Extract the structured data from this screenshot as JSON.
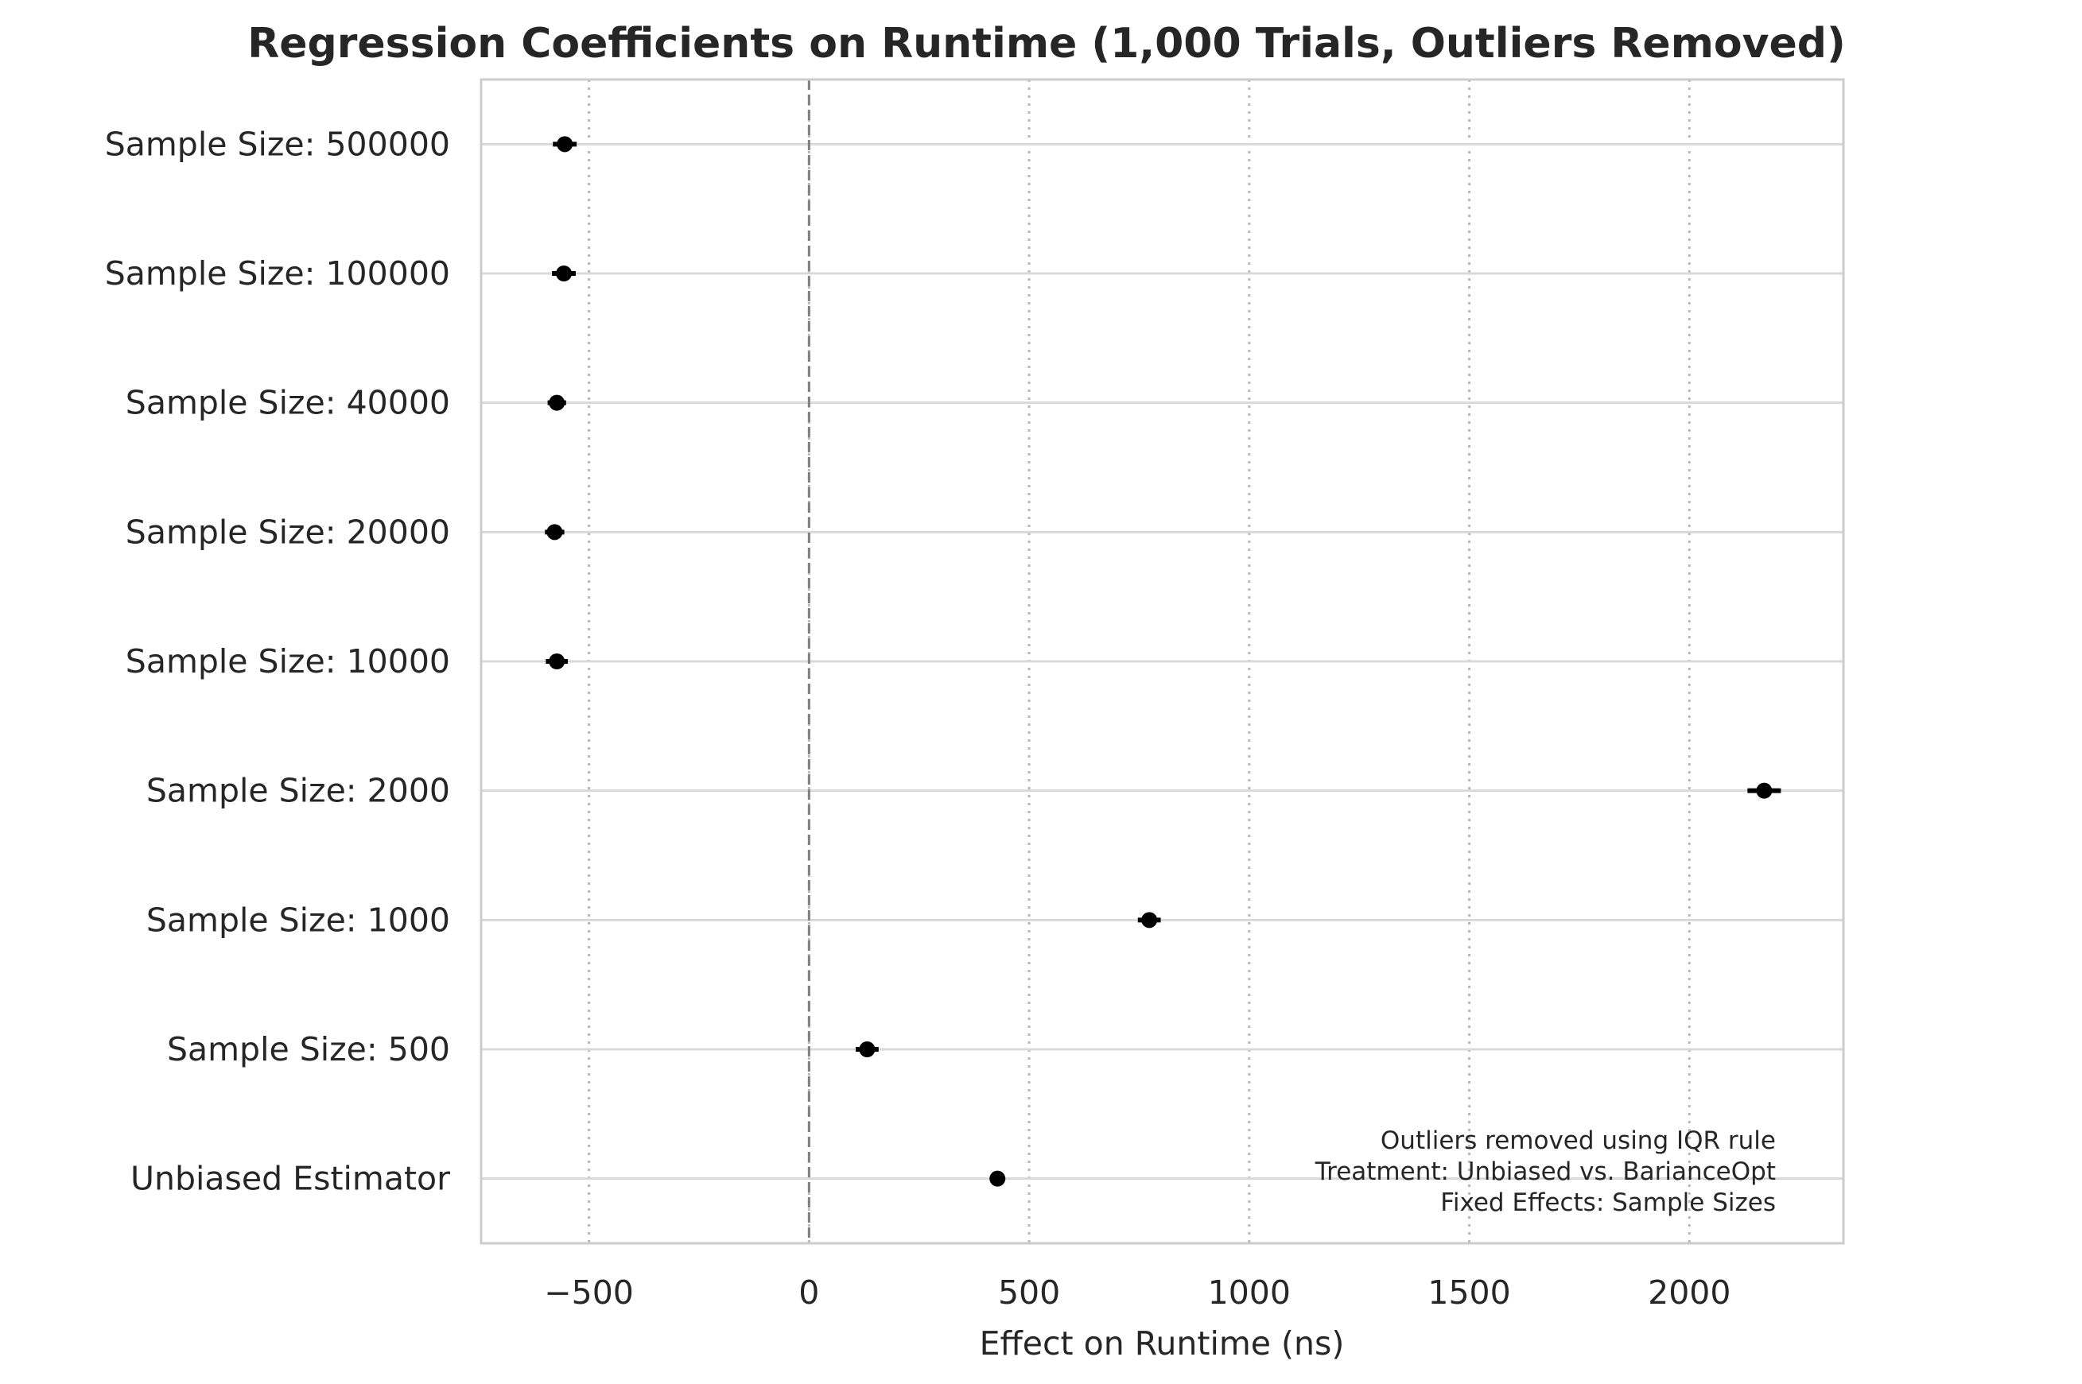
{
  "chart_data": {
    "type": "scatter",
    "title": "Regression Coefficients on Runtime (1,000 Trials, Outliers Removed)",
    "xlabel": "Effect on Runtime (ns)",
    "ylabel": "",
    "xlim": [
      -745,
      2350
    ],
    "xticks": [
      -500,
      0,
      500,
      1000,
      1500,
      2000
    ],
    "xtick_labels": [
      "−500",
      "0",
      "500",
      "1000",
      "1500",
      "2000"
    ],
    "reference_line": {
      "x": 0,
      "style": "dashed"
    },
    "grid": {
      "x": "dotted",
      "y": "solid"
    },
    "categories": [
      "Sample Size: 500000",
      "Sample Size: 100000",
      "Sample Size: 40000",
      "Sample Size: 20000",
      "Sample Size: 10000",
      "Sample Size: 2000",
      "Sample Size: 1000",
      "Sample Size: 500",
      "Unbiased Estimator"
    ],
    "values": [
      -555,
      -557,
      -573,
      -578,
      -573,
      2170,
      773,
      132,
      428
    ],
    "ci_low": [
      -582,
      -584,
      -594,
      -600,
      -598,
      2132,
      747,
      106,
      418
    ],
    "ci_high": [
      -528,
      -530,
      -552,
      -556,
      -548,
      2208,
      799,
      158,
      438
    ],
    "marker_color": "#000000",
    "annotation": [
      "Outliers removed using IQR rule",
      "Treatment: Unbiased vs. BarianceOpt",
      "Fixed Effects: Sample Sizes"
    ]
  }
}
